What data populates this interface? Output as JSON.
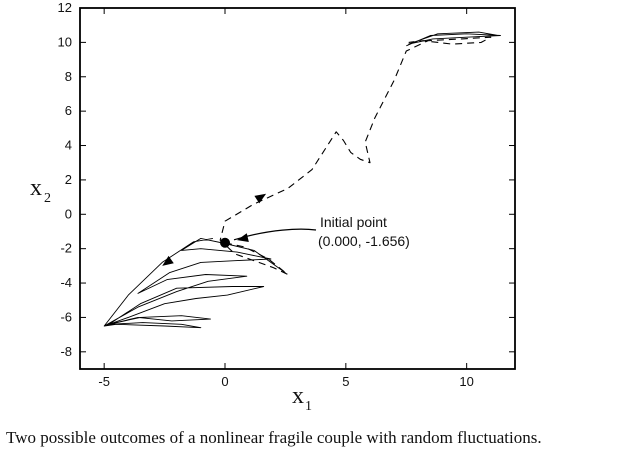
{
  "chart_data": {
    "type": "line",
    "xlim": [
      -6,
      12
    ],
    "ylim": [
      -9,
      12
    ],
    "x_ticks": [
      -5,
      0,
      5,
      10
    ],
    "y_ticks": [
      -8,
      -6,
      -4,
      -2,
      0,
      2,
      4,
      6,
      8,
      10,
      12
    ],
    "x_tick_labels": [
      "-5",
      "0",
      "5",
      "10"
    ],
    "y_tick_labels": [
      "-8",
      "-6",
      "-4",
      "-2",
      "0",
      "2",
      "4",
      "6",
      "8",
      "10",
      "12"
    ],
    "xlabel": "x",
    "xlabel_sub": "1",
    "ylabel": "x",
    "ylabel_sub": "2",
    "grid": false,
    "series": [
      {
        "style": "solid",
        "points": [
          [
            -0.5,
            -1.4
          ],
          [
            -1.3,
            -1.6
          ],
          [
            -2.6,
            -2.8
          ],
          [
            -4.0,
            -4.7
          ],
          [
            -5.0,
            -6.5
          ],
          [
            -4.0,
            -6.0
          ],
          [
            -2.5,
            -5.2
          ],
          [
            -1.2,
            -4.9
          ],
          [
            0.1,
            -4.7
          ],
          [
            1.6,
            -4.2
          ],
          [
            0.3,
            -4.2
          ],
          [
            -2.0,
            -4.3
          ],
          [
            -3.5,
            -5.2
          ],
          [
            -4.8,
            -6.4
          ],
          [
            -3.5,
            -6.0
          ],
          [
            -1.8,
            -5.9
          ],
          [
            -0.6,
            -6.1
          ],
          [
            -2.2,
            -6.2
          ],
          [
            -3.6,
            -6.0
          ],
          [
            -4.8,
            -6.4
          ],
          [
            -3.4,
            -6.3
          ],
          [
            -1.8,
            -6.4
          ],
          [
            -1.0,
            -6.6
          ],
          [
            -2.5,
            -6.5
          ],
          [
            -4.5,
            -6.4
          ],
          [
            -5.0,
            -6.5
          ],
          [
            -3.6,
            -5.4
          ],
          [
            -2.0,
            -4.5
          ],
          [
            -0.7,
            -3.9
          ],
          [
            0.9,
            -3.6
          ],
          [
            -0.8,
            -3.5
          ],
          [
            -2.4,
            -3.8
          ],
          [
            -3.6,
            -4.6
          ],
          [
            -2.3,
            -3.4
          ],
          [
            -1.0,
            -2.8
          ],
          [
            0.4,
            -2.7
          ],
          [
            1.9,
            -2.6
          ],
          [
            0.5,
            -2.2
          ],
          [
            -1.0,
            -2.0
          ],
          [
            -1.8,
            -2.1
          ],
          [
            -1.0,
            -1.4
          ],
          [
            0.0,
            -1.7
          ],
          [
            1.2,
            -2.1
          ],
          [
            2.5,
            -3.4
          ]
        ]
      },
      {
        "style": "dashed",
        "points": [
          [
            0.0,
            -1.656
          ],
          [
            0.8,
            -1.9
          ],
          [
            1.8,
            -2.6
          ],
          [
            2.6,
            -3.5
          ],
          [
            2.0,
            -3.1
          ],
          [
            0.4,
            -2.3
          ],
          [
            -0.2,
            -1.5
          ],
          [
            0.0,
            -0.4
          ],
          [
            1.2,
            0.6
          ],
          [
            2.6,
            1.5
          ],
          [
            3.6,
            2.6
          ],
          [
            4.6,
            4.8
          ],
          [
            4.9,
            4.3
          ],
          [
            5.2,
            3.6
          ],
          [
            5.6,
            3.2
          ],
          [
            6.0,
            3.0
          ],
          [
            5.8,
            4.2
          ],
          [
            6.2,
            5.6
          ],
          [
            7.0,
            7.8
          ],
          [
            7.5,
            9.5
          ],
          [
            8.4,
            10.1
          ],
          [
            9.8,
            10.2
          ],
          [
            11.0,
            10.3
          ],
          [
            10.6,
            10.0
          ],
          [
            9.4,
            9.9
          ],
          [
            8.2,
            10.1
          ],
          [
            7.6,
            10.0
          ]
        ]
      },
      {
        "style": "solid",
        "points": [
          [
            7.5,
            9.8
          ],
          [
            8.5,
            10.4
          ],
          [
            10.0,
            10.5
          ],
          [
            11.4,
            10.4
          ],
          [
            10.0,
            10.3
          ],
          [
            8.6,
            10.2
          ],
          [
            7.6,
            9.9
          ],
          [
            8.8,
            10.5
          ],
          [
            10.5,
            10.6
          ],
          [
            11.3,
            10.4
          ]
        ]
      }
    ],
    "arrows": [
      {
        "style": "solid",
        "at": [
          -2.6,
          -3.0
        ],
        "direction": [
          -1.4,
          -1.4
        ]
      },
      {
        "style": "dashed",
        "at": [
          1.7,
          1.2
        ],
        "direction": [
          1.0,
          0.9
        ]
      },
      {
        "style": "solid",
        "at": [
          0.5,
          -1.5
        ],
        "direction": [
          -0.3,
          -0.1
        ]
      }
    ],
    "initial_point": {
      "x": 0.0,
      "y": -1.656,
      "label": "Initial point",
      "coords_label": "(0.000, -1.656)"
    }
  },
  "caption": "Two possible outcomes of a nonlinear fragile couple with random fluctuations."
}
